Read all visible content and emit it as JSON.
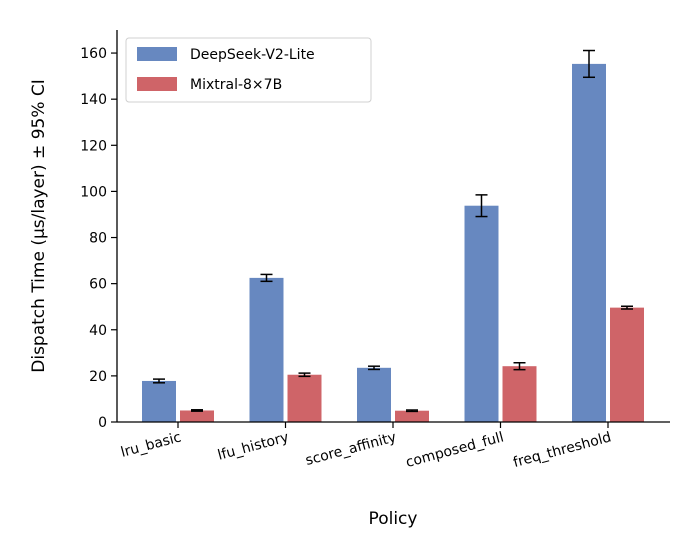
{
  "chart_data": {
    "type": "bar",
    "title": "",
    "xlabel": "Policy",
    "ylabel": "Dispatch Time (µs/layer) ± 95% CI",
    "categories": [
      "lru_basic",
      "lfu_history",
      "score_affinity",
      "composed_full",
      "freq_threshold"
    ],
    "series": [
      {
        "name": "DeepSeek-V2-Lite",
        "color": "#6788c0",
        "values": [
          17.8,
          62.5,
          23.5,
          93.8,
          155.3
        ],
        "ci": [
          0.8,
          1.5,
          0.7,
          4.7,
          5.8
        ]
      },
      {
        "name": "Mixtral-8×7B",
        "color": "#cf6468",
        "values": [
          5.0,
          20.5,
          4.9,
          24.2,
          49.6
        ],
        "ci": [
          0.3,
          0.7,
          0.3,
          1.5,
          0.6
        ]
      }
    ],
    "ylim": [
      0,
      170
    ],
    "yticks": [
      0,
      20,
      40,
      60,
      80,
      100,
      120,
      140,
      160
    ],
    "grid": false,
    "legend": "top-left"
  }
}
